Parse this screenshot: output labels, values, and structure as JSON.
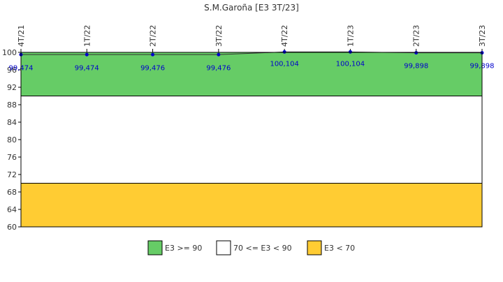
{
  "chart_data": {
    "type": "line",
    "title": "S.M.Garoña [E3 3T/23]",
    "xlabel": "",
    "ylabel": "",
    "categories": [
      "4T/21",
      "1T/22",
      "2T/22",
      "3T/22",
      "4T/22",
      "1T/23",
      "2T/23",
      "3T/23"
    ],
    "series": [
      {
        "values": [
          99.474,
          99.474,
          99.476,
          99.476,
          100.104,
          100.104,
          99.898,
          99.898
        ],
        "labels": [
          "99,474",
          "99,474",
          "99,476",
          "99,476",
          "100,104",
          "100,104",
          "99,898",
          "99,898"
        ],
        "color": "#0000cc"
      }
    ],
    "ylim": [
      60,
      100
    ],
    "yticks": [
      60,
      64,
      68,
      72,
      76,
      80,
      84,
      88,
      92,
      96,
      100
    ],
    "bands": [
      {
        "from": 90,
        "to": 100,
        "color": "#66cc66",
        "label": "E3 >= 90"
      },
      {
        "from": 70,
        "to": 90,
        "color": "#ffffff",
        "label": "70 <= E3 < 90"
      },
      {
        "from": 60,
        "to": 70,
        "color": "#ffcc33",
        "label": "E3 < 70"
      }
    ],
    "grid": false,
    "legend": "bottom"
  }
}
